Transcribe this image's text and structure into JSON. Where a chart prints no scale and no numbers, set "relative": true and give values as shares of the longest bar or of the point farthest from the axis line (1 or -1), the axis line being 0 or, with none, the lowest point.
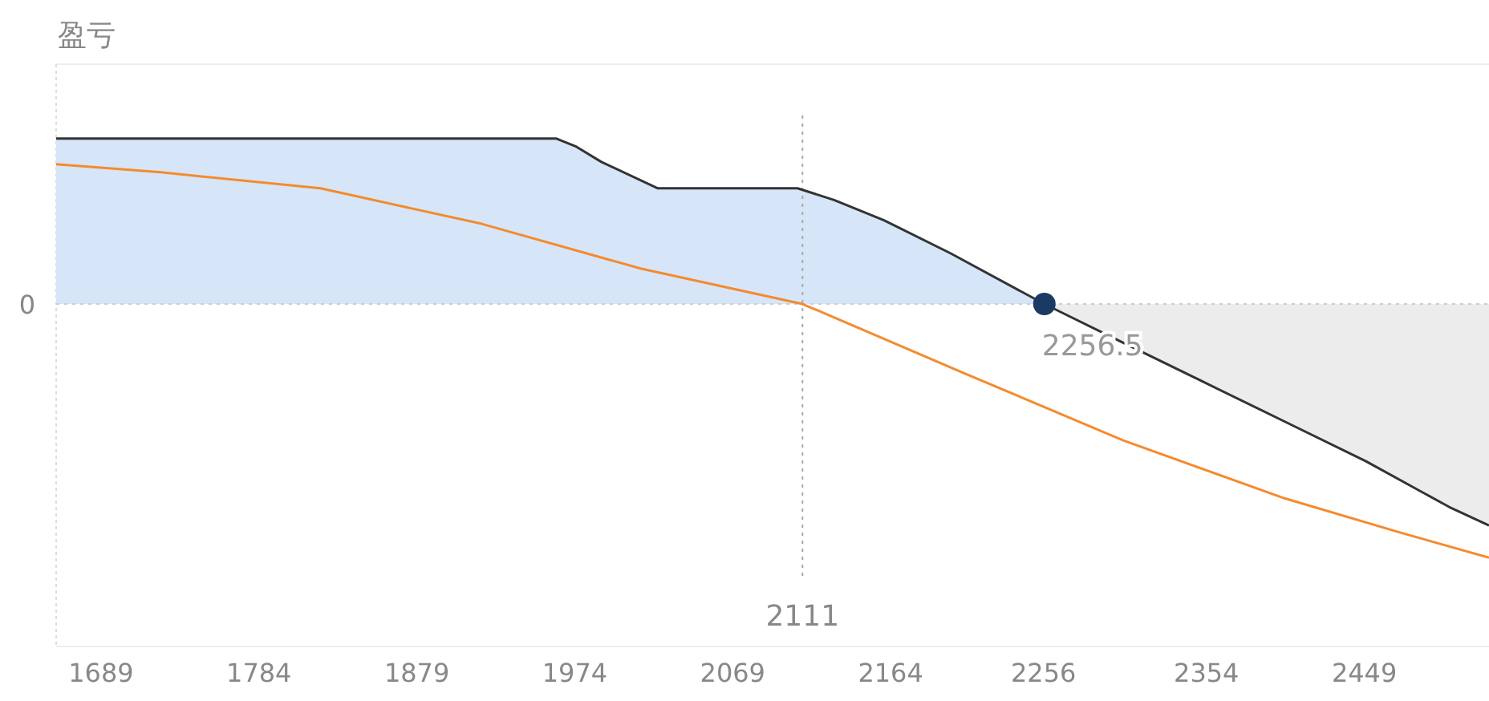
{
  "chart_data": {
    "type": "line",
    "ylabel": "盈亏",
    "relative": true,
    "xlim": [
      1662,
      2524
    ],
    "xticks": [
      1689,
      1784,
      1879,
      1974,
      2069,
      2164,
      2256,
      2354,
      2449
    ],
    "series": [
      {
        "type": "area",
        "color": "#d6e6f8",
        "x": [
          1662,
          1963,
          1975,
          1990,
          2024,
          2108,
          2130,
          2160,
          2200,
          2256.5
        ],
        "values": [
          0.652,
          0.652,
          0.62,
          0.56,
          0.456,
          0.456,
          0.41,
          0.33,
          0.2,
          0
        ]
      },
      {
        "type": "area",
        "color": "#ececec",
        "x": [
          2256.5,
          2300,
          2350,
          2400,
          2450,
          2500,
          2524
        ],
        "values": [
          0,
          -0.14,
          -0.3,
          -0.46,
          -0.62,
          -0.8,
          -0.873
        ]
      },
      {
        "color": "#333333",
        "x": [
          1662,
          1963,
          1975,
          1990,
          2024,
          2108,
          2130,
          2160,
          2200,
          2256.5,
          2300,
          2350,
          2400,
          2450,
          2500,
          2524
        ],
        "values": [
          0.652,
          0.652,
          0.62,
          0.56,
          0.456,
          0.456,
          0.41,
          0.33,
          0.2,
          0,
          -0.14,
          -0.3,
          -0.46,
          -0.62,
          -0.8,
          -0.873
        ]
      },
      {
        "color": "#f58a2e",
        "x": [
          1662,
          1725,
          1821,
          1918,
          2014,
          2111,
          2208,
          2304,
          2401,
          2470,
          2524
        ],
        "values": [
          0.551,
          0.519,
          0.456,
          0.316,
          0.139,
          0,
          -0.272,
          -0.538,
          -0.766,
          -0.9,
          -1
        ]
      },
      {
        "type": "scatter",
        "color": "#1b3a63",
        "marker": "circle",
        "x": [
          2256.5
        ],
        "values": [
          0
        ]
      }
    ],
    "ref_lines": [
      {
        "axis": "x",
        "value": 2111,
        "label": "2111",
        "line_style": "dotted"
      },
      {
        "axis": "y",
        "value": 0,
        "label": "0",
        "line_style": "dotted"
      }
    ],
    "annotations": [
      {
        "text": "2256.5",
        "x": 2256.5,
        "y": 0
      }
    ],
    "grid": false
  }
}
